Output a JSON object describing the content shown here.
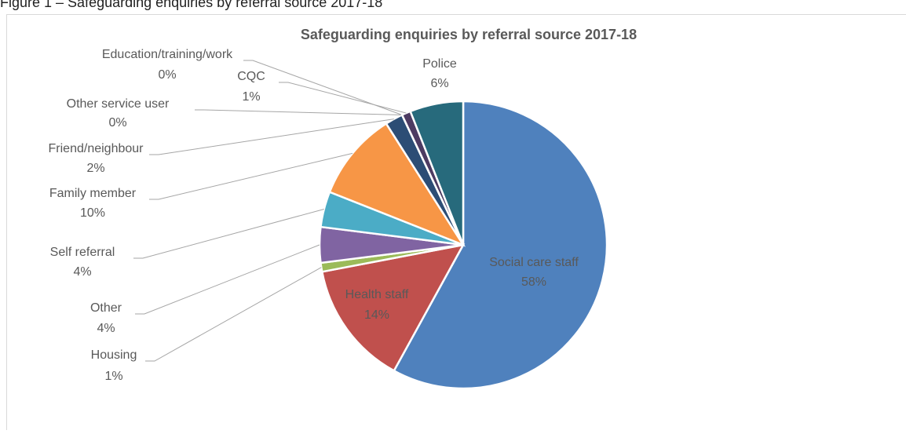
{
  "caption": "Figure 1 – Safeguarding enquiries by referral source 2017-18",
  "chart_data": {
    "type": "pie",
    "title": "Safeguarding enquiries by referral source 2017-18",
    "categories": [
      "Social care staff",
      "Health staff",
      "Housing",
      "Other",
      "Self referral",
      "Family member",
      "Friend/neighbour",
      "Other service user",
      "Education/training/work",
      "CQC",
      "Police"
    ],
    "values": [
      58,
      14,
      1,
      4,
      4,
      10,
      2,
      0,
      0,
      1,
      6
    ],
    "value_labels": [
      "58%",
      "14%",
      "1%",
      "4%",
      "4%",
      "10%",
      "2%",
      "0%",
      "0%",
      "1%",
      "6%"
    ],
    "colors": [
      "#4f81bd",
      "#c0504d",
      "#9bbb59",
      "#8064a2",
      "#4bacc6",
      "#f79646",
      "#2c4d75",
      "#772c2a",
      "#5f7530",
      "#4d3b62",
      "#276a7c"
    ]
  }
}
